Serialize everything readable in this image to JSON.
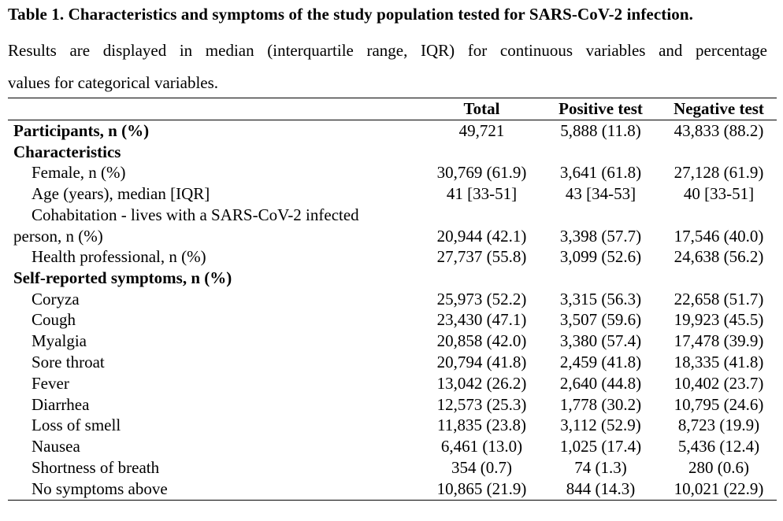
{
  "title": "Table 1. Characteristics and symptoms of the study population tested for SARS-CoV-2 infection.",
  "description": {
    "line1": "Results are displayed in median (interquartile range, IQR) for continuous variables and percentage",
    "line2": "values for categorical variables."
  },
  "columns": [
    "",
    "Total",
    "Positive test",
    "Negative test"
  ],
  "participants": {
    "label": "Participants, n (%)",
    "values": [
      "49,721",
      "5,888 (11.8)",
      "43,833 (88.2)"
    ]
  },
  "characteristics": {
    "heading": "Characteristics",
    "rows": [
      {
        "label": "Female, n (%)",
        "values": [
          "30,769 (61.9)",
          "3,641 (61.8)",
          "27,128 (61.9)"
        ]
      },
      {
        "label": "Age (years), median [IQR]",
        "values": [
          "41 [33-51]",
          "43 [34-53]",
          "40 [33-51]"
        ]
      },
      {
        "label_line1": "Cohabitation - lives with a SARS-CoV-2 infected",
        "label_line2": "person, n (%)",
        "values": [
          "20,944 (42.1)",
          "3,398 (57.7)",
          "17,546 (40.0)"
        ]
      },
      {
        "label": "Health professional, n (%)",
        "values": [
          "27,737 (55.8)",
          "3,099 (52.6)",
          "24,638 (56.2)"
        ]
      }
    ]
  },
  "symptoms": {
    "heading": "Self-reported symptoms, n (%)",
    "rows": [
      {
        "label": "Coryza",
        "values": [
          "25,973 (52.2)",
          "3,315 (56.3)",
          "22,658 (51.7)"
        ]
      },
      {
        "label": "Cough",
        "values": [
          "23,430 (47.1)",
          "3,507 (59.6)",
          "19,923 (45.5)"
        ]
      },
      {
        "label": "Myalgia",
        "values": [
          "20,858 (42.0)",
          "3,380 (57.4)",
          "17,478 (39.9)"
        ]
      },
      {
        "label": "Sore throat",
        "values": [
          "20,794 (41.8)",
          "2,459 (41.8)",
          "18,335 (41.8)"
        ]
      },
      {
        "label": "Fever",
        "values": [
          "13,042 (26.2)",
          "2,640 (44.8)",
          "10,402 (23.7)"
        ]
      },
      {
        "label": "Diarrhea",
        "values": [
          "12,573 (25.3)",
          "1,778 (30.2)",
          "10,795 (24.6)"
        ]
      },
      {
        "label": "Loss of smell",
        "values": [
          "11,835 (23.8)",
          "3,112 (52.9)",
          "8,723 (19.9)"
        ]
      },
      {
        "label": "Nausea",
        "values": [
          "6,461 (13.0)",
          "1,025 (17.4)",
          "5,436 (12.4)"
        ]
      },
      {
        "label": "Shortness of breath",
        "values": [
          "354 (0.7)",
          "74 (1.3)",
          "280 (0.6)"
        ]
      },
      {
        "label": "No symptoms above",
        "values": [
          "10,865 (21.9)",
          "844 (14.3)",
          "10,021 (22.9)"
        ]
      }
    ]
  }
}
